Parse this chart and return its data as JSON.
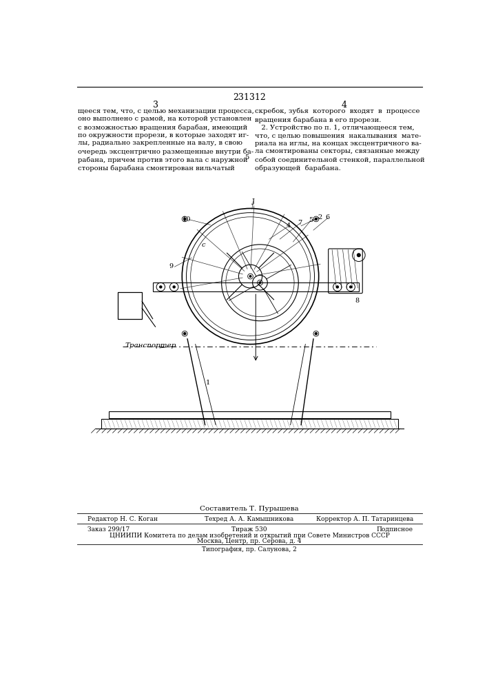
{
  "patent_number": "231312",
  "col_left": "3",
  "col_right": "4",
  "text_left": "щееся тем, что, с целью механизации процесса,\nоно выполнено с рамой, на которой установлен\nс возможностью вращения барабан, имеющий\nпо окружности прорези, в которые заходят иг-\nлы, радиально закрепленные на валу, в свою\nочередь эксцентрично размещенные внутри ба-\nрабана, причем против этого вала с наружной\nстороны барабана смонтирован вильчатый",
  "text_right": "скребок, зубья  которого  входят  в  процессе\nвращения барабана в его прорези.\n   2. Устройство по п. 1, отличающееся тем,\nчто, с целью повышения  накалывания  мате-\nриала на иглы, на концах эксцентричного ва-\nла смонтированы секторы, связанные между\nсобой соединительной стенкой, параллельной\nобразующей  барабана.",
  "col5_num": "5",
  "footer_sestavitel": "Составитель Т. Пурышева",
  "footer_editor": "Редактор Н. С. Коган",
  "footer_techred": "Техред А. А. Камышникова",
  "footer_corrector": "Корректор А. П. Татаринцева",
  "footer_zakaz": "Заказ 299/17",
  "footer_tirazh": "Тираж 530",
  "footer_podpisnoe": "Подписное",
  "footer_cniipи": "ЦНИИПИ Комитета по делам изобретений и открытий при Совете Министров СССР",
  "footer_moscow": "Москва, Центр, пр. Серова, д. 4",
  "footer_tipografia": "Типография, пр. Салунова, 2",
  "bg_color": "#ffffff",
  "text_color": "#000000"
}
